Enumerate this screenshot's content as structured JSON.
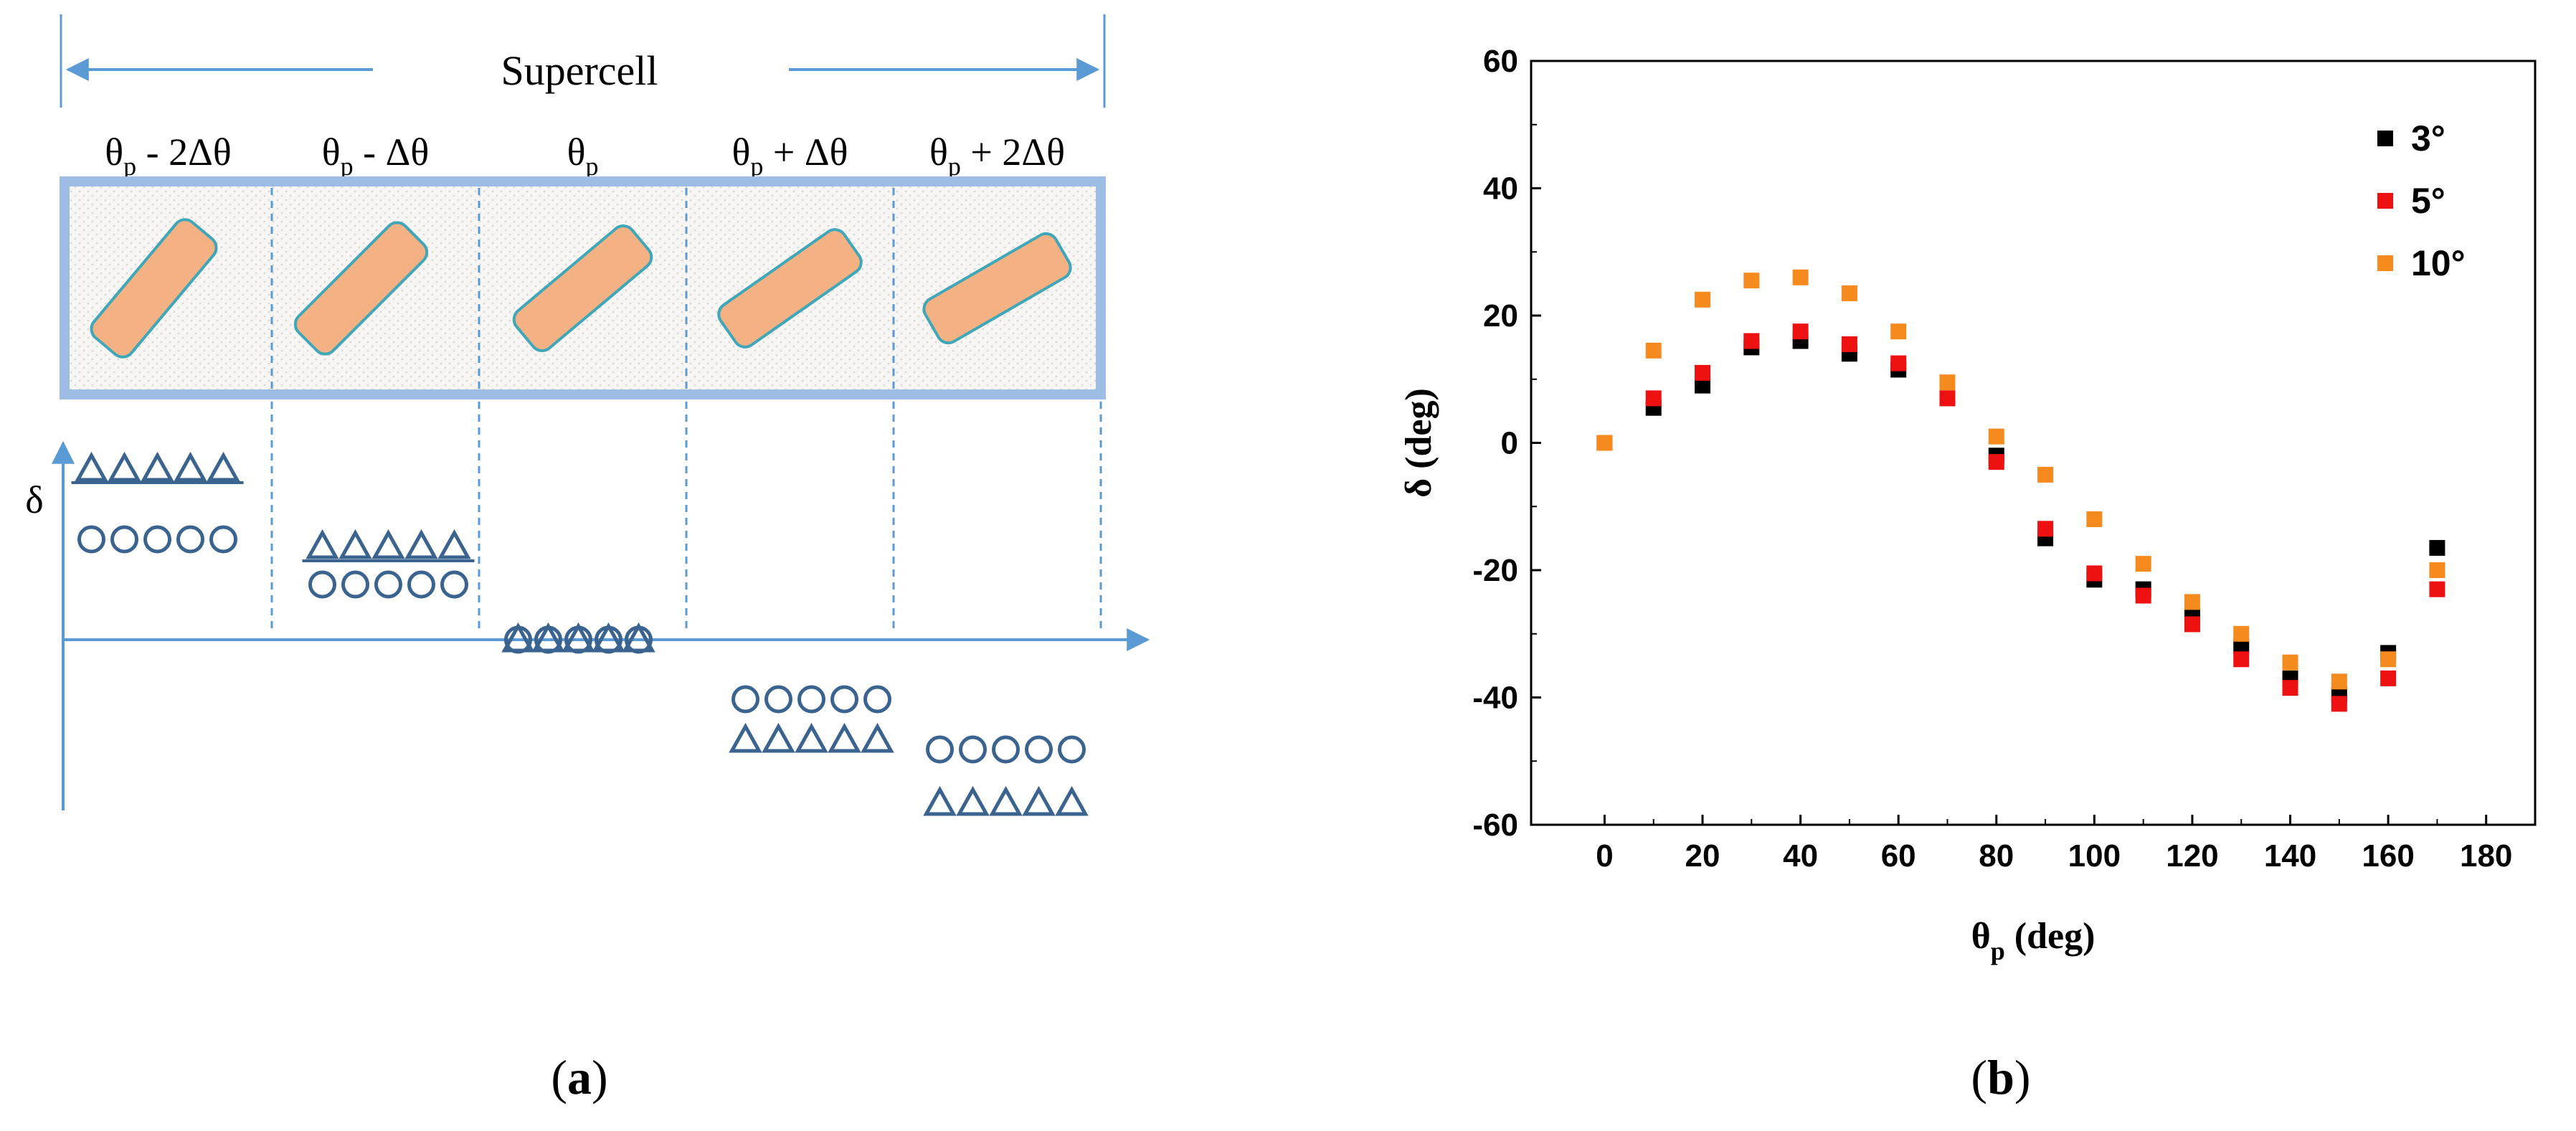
{
  "panel_a": {
    "caption_open": "(",
    "caption_letter": "a",
    "caption_close": ")",
    "supercell_label": "Supercell",
    "y_axis_label": "δ",
    "cell_labels": [
      {
        "base": "θ",
        "sub": "p",
        "rest": " - 2Δθ"
      },
      {
        "base": "θ",
        "sub": "p",
        "rest": " - Δθ"
      },
      {
        "base": "θ",
        "sub": "p",
        "rest": ""
      },
      {
        "base": "θ",
        "sub": "p",
        "rest": " + Δθ"
      },
      {
        "base": "θ",
        "sub": "p",
        "rest": " + 2Δθ"
      }
    ],
    "rod_tilts_deg": [
      -50,
      -45,
      -40,
      -35,
      -30
    ],
    "colors": {
      "frame": "#9dbde4",
      "arrow": "#5b9bd5",
      "rod_fill": "#f4b183",
      "rod_stroke": "#3fa7b8",
      "symbol": "#3a6390"
    }
  },
  "panel_b": {
    "caption_open": "(",
    "caption_letter": "b",
    "caption_close": ")"
  },
  "chart_data": {
    "type": "scatter",
    "title": "",
    "xlabel_base": "θ",
    "xlabel_sub": "p",
    "xlabel_rest": " (deg)",
    "ylabel": "δ (deg)",
    "xlim": [
      -15,
      190
    ],
    "ylim": [
      -60,
      60
    ],
    "xticks": [
      0,
      20,
      40,
      60,
      80,
      100,
      120,
      140,
      160,
      180
    ],
    "yticks": [
      -60,
      -40,
      -20,
      0,
      20,
      40,
      60
    ],
    "legend_position": "top-right",
    "x": [
      0,
      10,
      20,
      30,
      40,
      50,
      60,
      70,
      80,
      90,
      100,
      110,
      120,
      130,
      140,
      150,
      160,
      170
    ],
    "series": [
      {
        "name": "3°",
        "color": "#000000",
        "values": [
          0,
          5.5,
          9,
          15,
          16,
          14,
          11.5,
          7,
          -2,
          -15,
          -21.5,
          -23,
          -27,
          -32,
          -37,
          -39.5,
          -33,
          -16.5
        ]
      },
      {
        "name": "5°",
        "color": "#ee1111",
        "values": [
          0,
          7,
          11,
          16,
          17.5,
          15.5,
          12.5,
          7,
          -3,
          -13.5,
          -20.5,
          -24,
          -28.5,
          -34,
          -38.5,
          -41,
          -37,
          -23
        ]
      },
      {
        "name": "10°",
        "color": "#f58a1f",
        "values": [
          0,
          14.5,
          22.5,
          25.5,
          26,
          23.5,
          17.5,
          9.5,
          1,
          -5,
          -12,
          -19,
          -25,
          -30,
          -34.5,
          -37.5,
          -34,
          -20
        ]
      }
    ]
  }
}
